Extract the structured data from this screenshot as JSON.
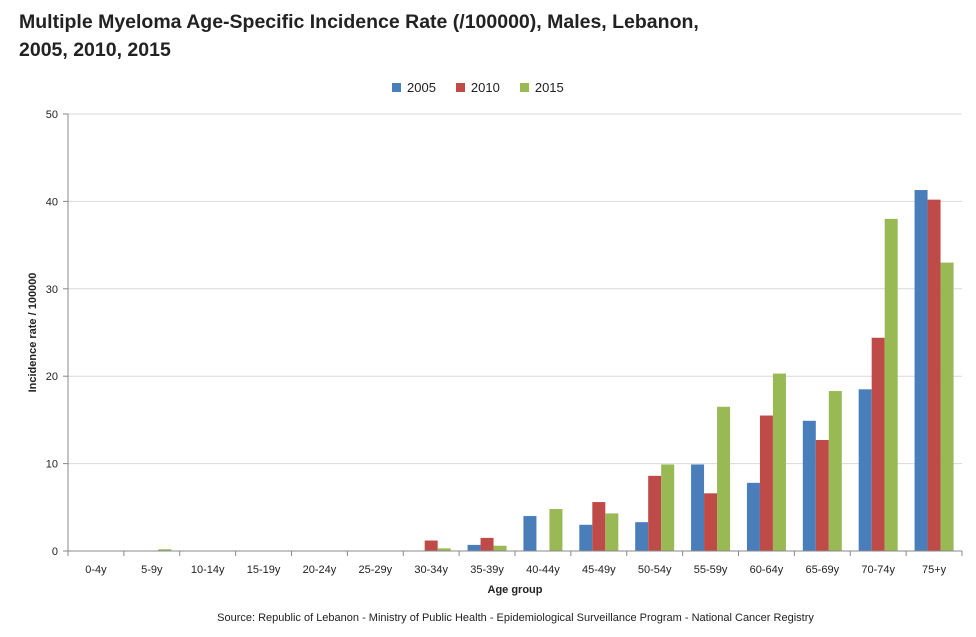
{
  "title": "Multiple Myeloma Age-Specific Incidence Rate (/100000), Males, Lebanon, 2005, 2010, 2015",
  "source": "Source: Republic of Lebanon - Ministry of Public Health - Epidemiological Surveillance Program - National Cancer Registry",
  "colors": {
    "2005": "#4a7ebb",
    "2010": "#be4b48",
    "2015": "#98b954"
  },
  "chart_data": {
    "type": "bar",
    "title": "Multiple Myeloma Age-Specific Incidence Rate (/100000), Males, Lebanon, 2005, 2010, 2015",
    "xlabel": "Age group",
    "ylabel": "Incidence rate / 100000",
    "ylim": [
      0,
      50
    ],
    "yticks": [
      0,
      10,
      20,
      30,
      40,
      50
    ],
    "grid": true,
    "legend_position": "top",
    "categories": [
      "0-4y",
      "5-9y",
      "10-14y",
      "15-19y",
      "20-24y",
      "25-29y",
      "30-34y",
      "35-39y",
      "40-44y",
      "45-49y",
      "50-54y",
      "55-59y",
      "60-64y",
      "65-69y",
      "70-74y",
      "75+y"
    ],
    "series": [
      {
        "name": "2005",
        "values": [
          0,
          0,
          0,
          0,
          0,
          0,
          0,
          0.7,
          4.0,
          3.0,
          3.3,
          9.9,
          7.8,
          14.9,
          18.5,
          41.3
        ]
      },
      {
        "name": "2010",
        "values": [
          0,
          0,
          0,
          0,
          0,
          0,
          1.2,
          1.5,
          0,
          5.6,
          8.6,
          6.6,
          15.5,
          12.7,
          24.4,
          40.2
        ]
      },
      {
        "name": "2015",
        "values": [
          0,
          0.2,
          0,
          0,
          0,
          0,
          0.3,
          0.6,
          4.8,
          4.3,
          9.9,
          16.5,
          20.3,
          18.3,
          38.0,
          33.0
        ]
      }
    ]
  }
}
